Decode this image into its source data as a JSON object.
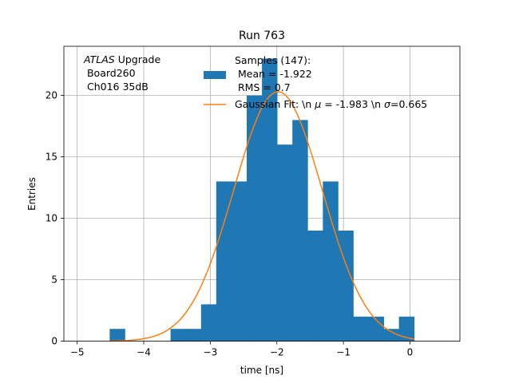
{
  "chart_data": {
    "type": "bar",
    "title": "Run 763",
    "xlabel": "time [ns]",
    "ylabel": "Entries",
    "xlim": [
      -5.2,
      0.75
    ],
    "ylim": [
      0,
      24
    ],
    "xticks": [
      -5,
      -4,
      -3,
      -2,
      -1,
      0
    ],
    "xtick_labels": [
      "−5",
      "−4",
      "−3",
      "−2",
      "−1",
      "0"
    ],
    "yticks": [
      0,
      5,
      10,
      15,
      20
    ],
    "ytick_labels": [
      "0",
      "5",
      "10",
      "15",
      "20"
    ],
    "grid": true,
    "bin_edges": [
      -4.512,
      -4.283,
      -4.054,
      -3.826,
      -3.597,
      -3.368,
      -3.139,
      -2.911,
      -2.682,
      -2.453,
      -2.224,
      -1.996,
      -1.767,
      -1.538,
      -1.309,
      -1.081,
      -0.852,
      -0.623,
      -0.394,
      -0.166,
      0.063
    ],
    "counts": [
      1,
      0,
      0,
      0,
      1,
      1,
      3,
      13,
      13,
      20,
      23,
      16,
      18,
      9,
      13,
      9,
      2,
      2,
      1,
      2
    ],
    "histogram_color": "#1f77b4",
    "fit": {
      "mu": -1.983,
      "sigma": 0.665,
      "amplitude": 20.3,
      "x_range": [
        -4.512,
        0.063
      ],
      "color": "#ff7f0e"
    },
    "annotation": {
      "italic": "ATLAS",
      "rest": " Upgrade",
      "line2": " Board260",
      "line3": " Ch016 35dB"
    },
    "legend": {
      "placement": "top-center",
      "hist_lines": [
        "Samples (147):",
        " Mean = -1.922",
        " RMS = 0.7"
      ],
      "fit_label_parts": [
        "Gaussian Fit: \\n ",
        "μ",
        " = -1.983 \\n ",
        "σ",
        "=0.665"
      ]
    }
  }
}
